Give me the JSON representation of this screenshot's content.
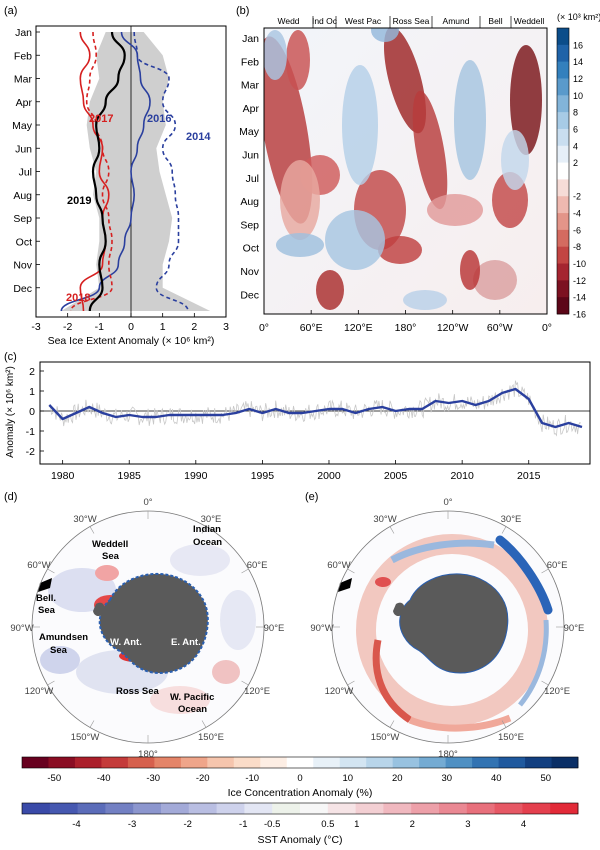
{
  "panels": {
    "a": {
      "label": "(a)",
      "months": [
        "Jan",
        "Feb",
        "Mar",
        "Apr",
        "May",
        "Jun",
        "Jul",
        "Aug",
        "Sep",
        "Oct",
        "Nov",
        "Dec"
      ],
      "xticks": [
        "-3",
        "-2",
        "-1",
        "0",
        "1",
        "2",
        "3"
      ],
      "xlabel": "Sea Ice Extent Anomaly (× 10⁶ km²)",
      "year_labels": [
        {
          "text": "2017",
          "color": "#d62020"
        },
        {
          "text": "2016",
          "color": "#2a3f9e"
        },
        {
          "text": "2014",
          "color": "#2a3f9e"
        },
        {
          "text": "2019",
          "color": "#000000"
        },
        {
          "text": "2018",
          "color": "#d62020"
        }
      ]
    },
    "b": {
      "label": "(b)",
      "months": [
        "Jan",
        "Feb",
        "Mar",
        "Apr",
        "May",
        "Jun",
        "Jul",
        "Aug",
        "Sep",
        "Oct",
        "Nov",
        "Dec"
      ],
      "sectors": [
        "Wedd",
        "Ind Oc",
        "West Pac",
        "Ross Sea",
        "Amund",
        "Bell",
        "Weddell"
      ],
      "xticks": [
        "0°",
        "60°E",
        "120°E",
        "180°",
        "120°W",
        "60°W",
        "0°"
      ],
      "colorbar_unit": "(× 10³ km²)",
      "colorbar_ticks": [
        "16",
        "14",
        "12",
        "10",
        "8",
        "6",
        "4",
        "2",
        "-2",
        "-4",
        "-6",
        "-8",
        "-10",
        "-12",
        "-14",
        "-16"
      ]
    },
    "c": {
      "label": "(c)",
      "ylabel": "Anomaly (× 10⁶ km²)",
      "yticks": [
        "2",
        "1",
        "0",
        "-1",
        "-2"
      ],
      "xticks": [
        "1980",
        "1985",
        "1990",
        "1995",
        "2000",
        "2005",
        "2010",
        "2015"
      ]
    },
    "d": {
      "label": "(d)",
      "lon_labels": [
        "0°",
        "30°E",
        "60°E",
        "90°E",
        "120°E",
        "150°E",
        "180°",
        "150°W",
        "120°W",
        "90°W",
        "60°W",
        "30°W"
      ],
      "regions": [
        "Weddell",
        "Sea",
        "Indian",
        "Ocean",
        "Bell.",
        "Sea",
        "W. Ant.",
        "E. Ant.",
        "Amundsen",
        "Sea",
        "Ross Sea",
        "W. Pacific",
        "Ocean"
      ]
    },
    "e": {
      "label": "(e)",
      "lon_labels": [
        "0°",
        "30°E",
        "60°E",
        "90°E",
        "120°E",
        "150°E",
        "180°",
        "150°W",
        "120°W",
        "90°W",
        "60°W",
        "30°W"
      ]
    }
  },
  "colorbars": {
    "ice": {
      "ticks": [
        "-50",
        "-40",
        "-30",
        "-20",
        "-10",
        "0",
        "10",
        "20",
        "30",
        "40",
        "50"
      ],
      "label": "Ice Concentration Anomaly (%)"
    },
    "sst": {
      "ticks": [
        "-4",
        "-3",
        "-2",
        "-1",
        "-0.5",
        "0.5",
        "1",
        "2",
        "3",
        "4"
      ],
      "label": "SST Anomaly (°C)"
    }
  },
  "colors": {
    "red_dark": "#6b0a14",
    "red": "#c7323b",
    "blue": "#2a3f9e",
    "blue_dark": "#0d3a78",
    "gray_band": "#cfcfcf",
    "land": "#5a5a5a"
  },
  "chart_data": [
    {
      "type": "line",
      "panel": "a",
      "xlim": [
        -3,
        3
      ],
      "ylim": [
        "Jan",
        "Dec"
      ],
      "series": [
        {
          "name": "2014",
          "color": "#2a3f9e",
          "style": "dashed",
          "values": [
            0.1,
            0.2,
            1.2,
            1.0,
            1.4,
            1.0,
            1.3,
            1.4,
            1.5,
            1.5,
            1.2,
            0.8,
            1.8
          ]
        },
        {
          "name": "2016",
          "color": "#2a3f9e",
          "style": "solid",
          "values": [
            -0.3,
            0.2,
            0.3,
            0.6,
            0.4,
            0.2,
            0.0,
            0.1,
            0.0,
            -0.2,
            -0.4,
            -1.0,
            -2.2
          ]
        },
        {
          "name": "2017",
          "color": "#d62020",
          "style": "solid",
          "values": [
            -1.6,
            -1.3,
            -1.6,
            -1.5,
            -1.2,
            -0.9,
            -1.0,
            -0.7,
            -0.9,
            -0.8,
            -0.9,
            -1.6,
            -1.5
          ]
        },
        {
          "name": "2018",
          "color": "#d62020",
          "style": "dashed",
          "values": [
            -1.2,
            -1.1,
            -1.3,
            -1.4,
            -1.1,
            -0.9,
            -0.7,
            -0.9,
            -0.7,
            -0.6,
            -0.7,
            -0.6,
            -1.9
          ]
        },
        {
          "name": "2019",
          "color": "#000000",
          "style": "solid",
          "values": [
            -0.6,
            -0.2,
            -0.4,
            -0.8,
            -1.1,
            -1.0,
            -1.2,
            -1.1,
            -0.9,
            -0.8,
            -1.0,
            -0.9,
            -1.3
          ]
        }
      ],
      "xlabel": "Sea Ice Extent Anomaly (× 10⁶ km²)"
    },
    {
      "type": "line",
      "panel": "c",
      "x": [
        1979,
        1980,
        1981,
        1982,
        1983,
        1984,
        1985,
        1986,
        1987,
        1988,
        1989,
        1990,
        1991,
        1992,
        1993,
        1994,
        1995,
        1996,
        1997,
        1998,
        1999,
        2000,
        2001,
        2002,
        2003,
        2004,
        2005,
        2006,
        2007,
        2008,
        2009,
        2010,
        2011,
        2012,
        2013,
        2014,
        2015,
        2016,
        2017,
        2018,
        2019
      ],
      "series": [
        {
          "name": "smoothed",
          "values": [
            0.3,
            -0.4,
            -0.1,
            0.2,
            -0.1,
            -0.3,
            -0.2,
            -0.3,
            -0.3,
            -0.2,
            -0.2,
            -0.2,
            -0.2,
            -0.2,
            -0.1,
            0.1,
            -0.1,
            0.1,
            -0.1,
            -0.1,
            0.0,
            0.1,
            0.1,
            -0.1,
            0.1,
            0.2,
            0.0,
            0.1,
            0.1,
            0.5,
            0.4,
            0.5,
            0.3,
            0.5,
            0.9,
            1.1,
            0.6,
            -0.6,
            -0.8,
            -0.6,
            -0.8
          ]
        }
      ],
      "ylim": [
        -2.5,
        2.5
      ],
      "ylabel": "Anomaly (× 10⁶ km²)"
    }
  ]
}
